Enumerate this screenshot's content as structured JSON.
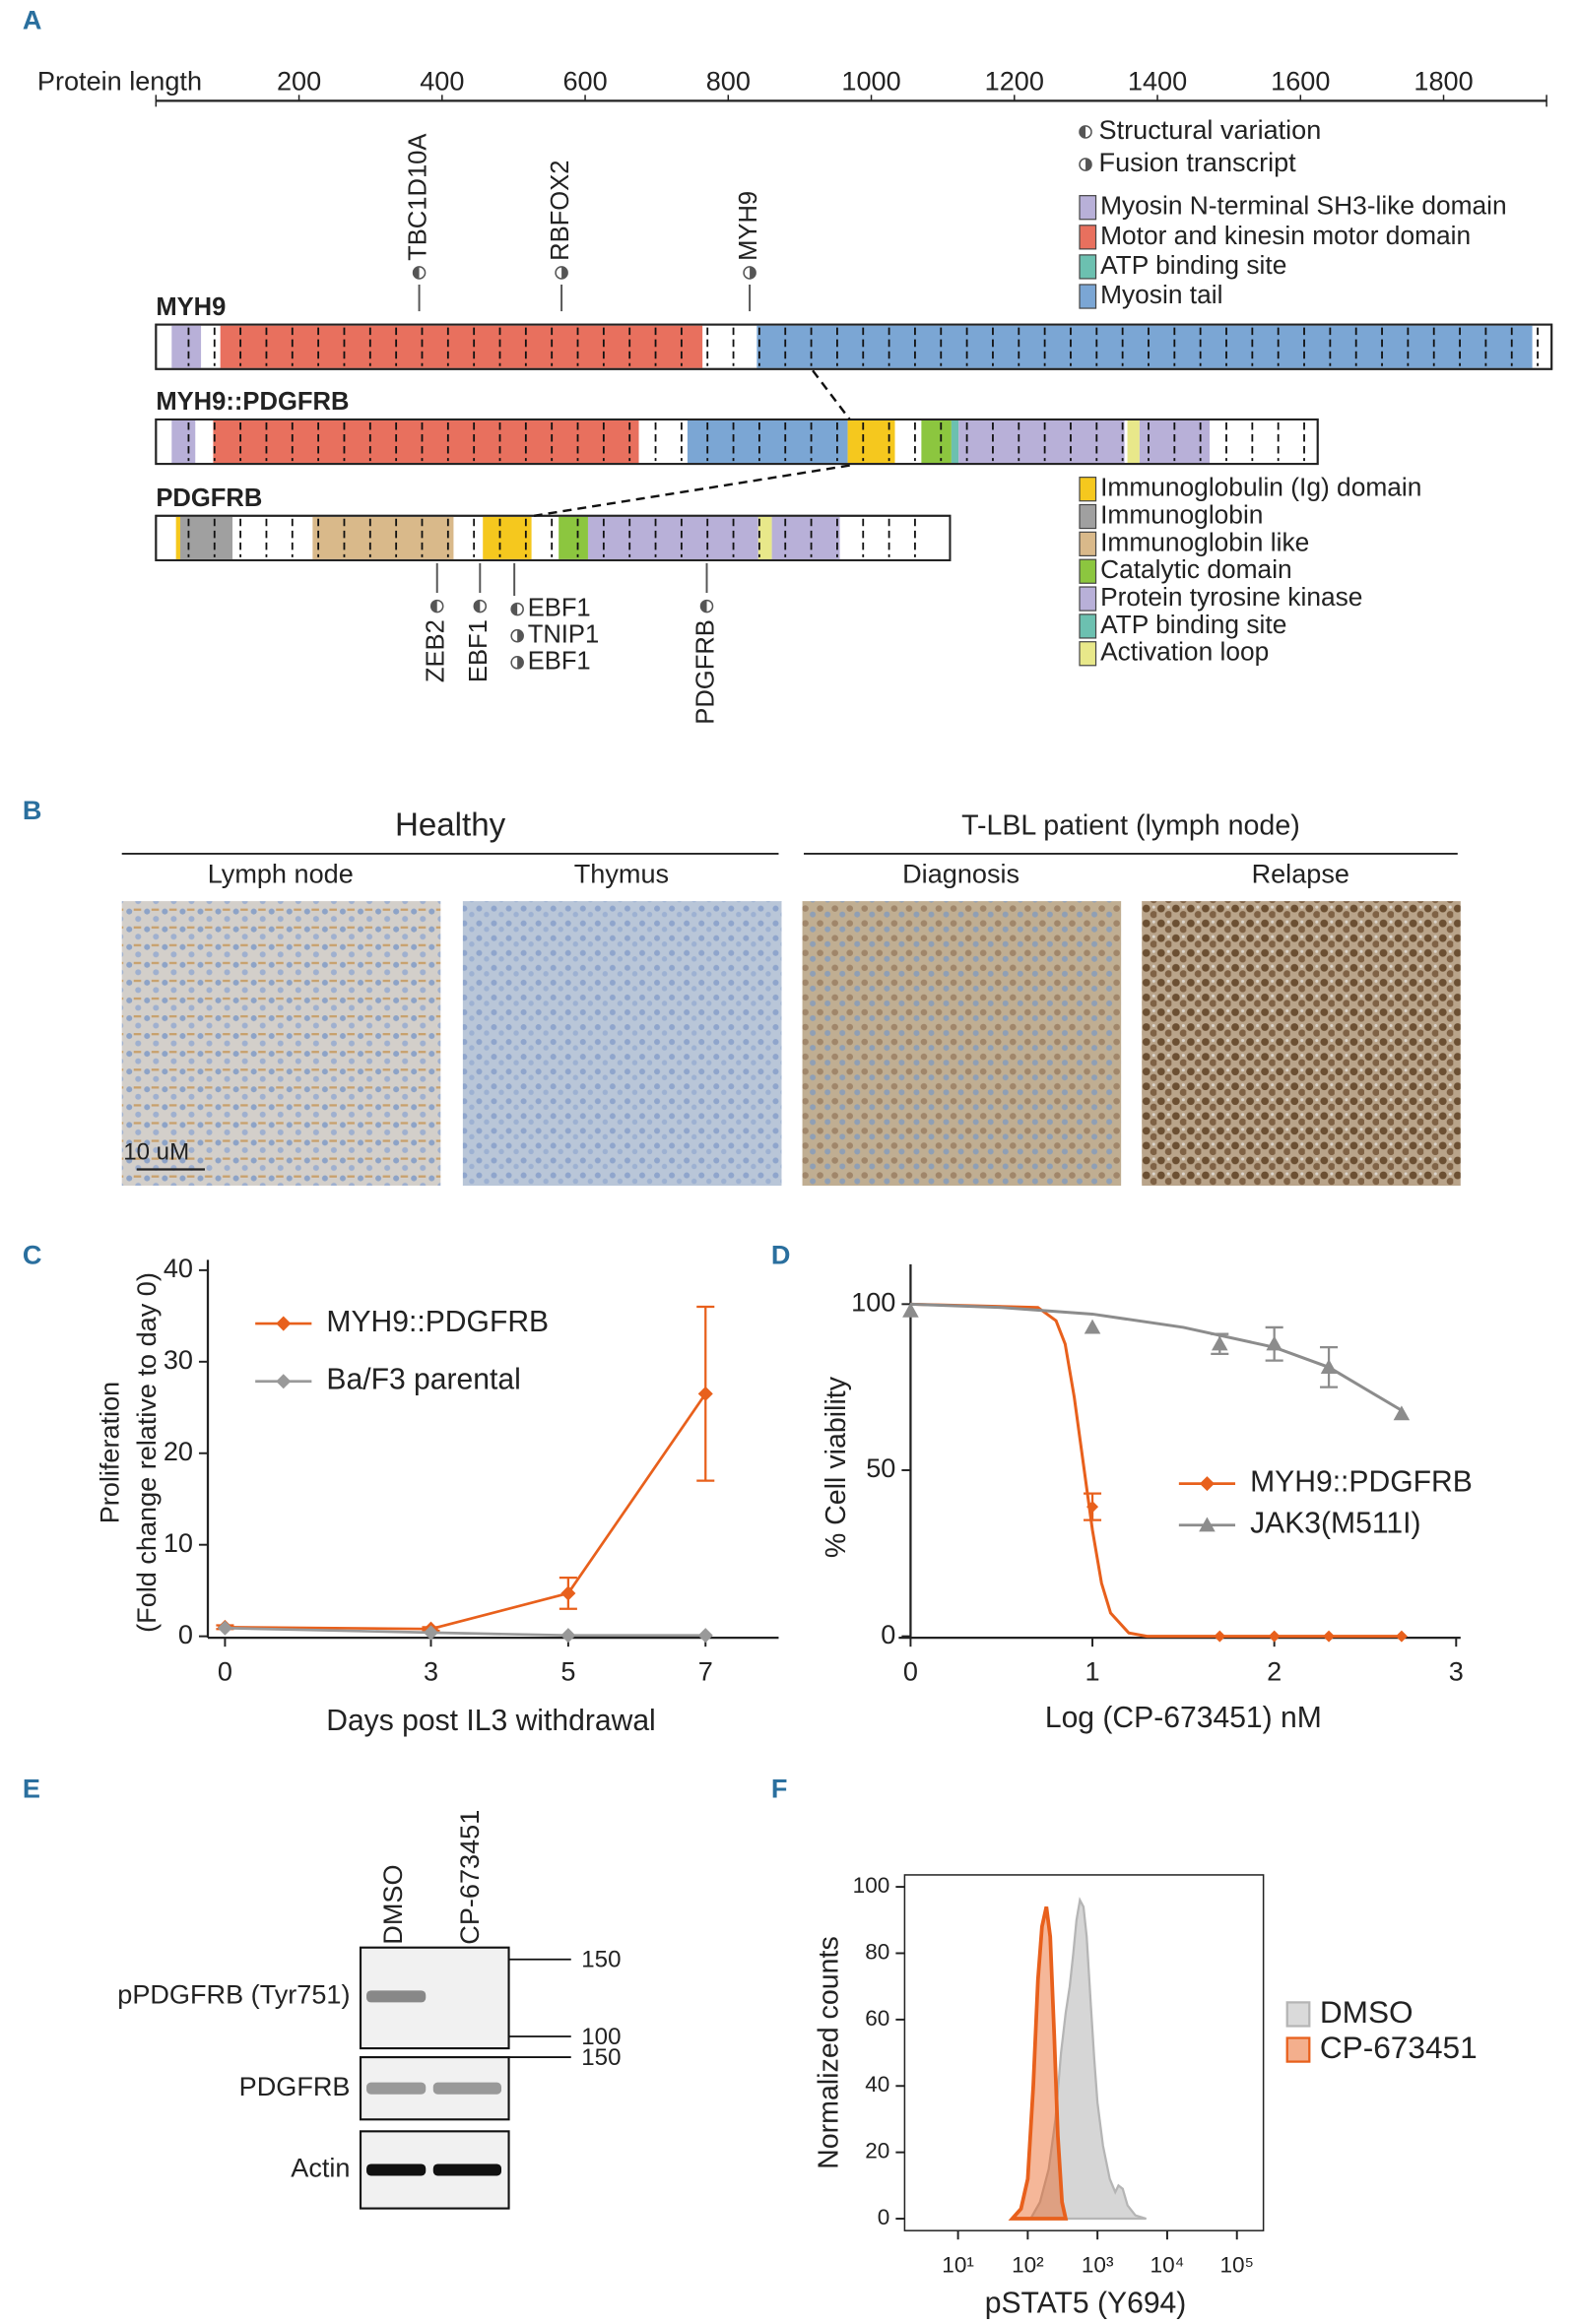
{
  "panel_labels": [
    "A",
    "B",
    "C",
    "D",
    "E",
    "F"
  ],
  "panel_a": {
    "axis": {
      "label": "Protein length",
      "lim": [
        0,
        1944
      ],
      "ticks": [
        200,
        400,
        600,
        800,
        1000,
        1200,
        1400,
        1600,
        1800
      ]
    },
    "variation_legend": [
      "Structural variation",
      "Fusion transcript"
    ],
    "legend_top": [
      {
        "label": "Myosin N-terminal SH3-like domain",
        "color": "#b8b0d8"
      },
      {
        "label": "Motor and  kinesin motor domain",
        "color": "#e8705e"
      },
      {
        "label": "ATP binding site",
        "color": "#6cc0b0"
      },
      {
        "label": "Myosin tail",
        "color": "#7ba6d4"
      }
    ],
    "legend_bottom": [
      {
        "label": "Immunoglobulin (Ig) domain",
        "color": "#f5c81e"
      },
      {
        "label": "Immunoglobin",
        "color": "#a0a0a0"
      },
      {
        "label": "Immunoglobin like",
        "color": "#d9b98a"
      },
      {
        "label": "Catalytic domain",
        "color": "#8cc63f"
      },
      {
        "label": "Protein tyrosine kinase",
        "color": "#b8b0d8"
      },
      {
        "label": "ATP binding site",
        "color": "#6cc0b0"
      },
      {
        "label": "Activation loop",
        "color": "#e8e88a"
      }
    ],
    "proteins": [
      {
        "name": "MYH9",
        "length": 1951,
        "segments": [
          {
            "start": 22,
            "end": 63,
            "color": "#b8b0d8"
          },
          {
            "start": 90,
            "end": 764,
            "color": "#e8705e"
          },
          {
            "start": 840,
            "end": 1924,
            "color": "#7ba6d4"
          }
        ]
      },
      {
        "name": "MYH9::PDGFRB",
        "length": 1624,
        "segments": [
          {
            "start": 22,
            "end": 55,
            "color": "#b8b0d8"
          },
          {
            "start": 80,
            "end": 675,
            "color": "#e8705e"
          },
          {
            "start": 743,
            "end": 967,
            "color": "#7ba6d4"
          },
          {
            "start": 967,
            "end": 1033,
            "color": "#f5c81e"
          },
          {
            "start": 1070,
            "end": 1112,
            "color": "#8cc63f"
          },
          {
            "start": 1112,
            "end": 1122,
            "color": "#6cc0b0"
          },
          {
            "start": 1122,
            "end": 1354,
            "color": "#b8b0d8"
          },
          {
            "start": 1358,
            "end": 1375,
            "color": "#e8e88a"
          },
          {
            "start": 1375,
            "end": 1473,
            "color": "#b8b0d8"
          }
        ]
      },
      {
        "name": "PDGFRB",
        "length": 1110,
        "segments": [
          {
            "start": 28,
            "end": 34,
            "color": "#f5c81e"
          },
          {
            "start": 34,
            "end": 107,
            "color": "#a0a0a0"
          },
          {
            "start": 219,
            "end": 416,
            "color": "#d9b98a"
          },
          {
            "start": 457,
            "end": 525,
            "color": "#f5c81e"
          },
          {
            "start": 563,
            "end": 604,
            "color": "#8cc63f"
          },
          {
            "start": 604,
            "end": 842,
            "color": "#b8b0d8"
          },
          {
            "start": 842,
            "end": 861,
            "color": "#e8e88a"
          },
          {
            "start": 861,
            "end": 956,
            "color": "#b8b0d8"
          }
        ]
      }
    ],
    "annotations_top": [
      {
        "label": "TBC1D10A",
        "pos": 368
      },
      {
        "label": "RBFOX2",
        "pos": 567
      },
      {
        "label": "MYH9",
        "pos": 830
      }
    ],
    "annotations_bottom": [
      {
        "label": "ZEB2",
        "pos": 393
      },
      {
        "label": "EBF1",
        "pos": 453
      },
      {
        "labels": [
          "EBF1",
          "TNIP1",
          "EBF1"
        ],
        "pos": 501
      },
      {
        "label": "PDGFRB",
        "pos": 770
      }
    ]
  },
  "panel_b": {
    "groups": [
      {
        "title": "Healthy",
        "panels": [
          "Lymph node",
          "Thymus"
        ]
      },
      {
        "title": "T-LBL patient (lymph node)",
        "panels": [
          "Diagnosis",
          "Relapse"
        ]
      }
    ],
    "scale_bar": "10 uM"
  },
  "panel_e": {
    "columns": [
      "DMSO",
      "CP-673451"
    ],
    "rows": [
      {
        "label": "pPDGFRB (Tyr751)",
        "markers": [
          150,
          100
        ]
      },
      {
        "label": "PDGFRB",
        "markers": [
          150
        ]
      },
      {
        "label": "Actin",
        "markers": []
      }
    ]
  },
  "chart_data": [
    {
      "type": "line",
      "xlabel": "Days post IL3 withdrawal",
      "ylabel": [
        "Proliferation",
        "(Fold change relative to day 0)"
      ],
      "x": [
        0,
        3,
        5,
        7
      ],
      "series": [
        {
          "name": "MYH9::PDGFRB",
          "color": "#e8601c",
          "values": [
            1,
            0.8,
            4.7,
            26.5
          ],
          "errors": [
            0.2,
            0.2,
            1.7,
            9.5
          ]
        },
        {
          "name": "Ba/F3 parental",
          "color": "#999999",
          "values": [
            0.9,
            0.4,
            0.1,
            0.1
          ]
        }
      ],
      "xlim": [
        -0.25,
        8
      ],
      "ylim": [
        0,
        40
      ],
      "xticks": [
        0,
        3,
        5,
        7
      ],
      "yticks": [
        0,
        10,
        20,
        30,
        40
      ]
    },
    {
      "type": "scatter",
      "xlabel": "Log (CP-673451) nM",
      "ylabel": [
        "% Cell viability"
      ],
      "series": [
        {
          "name": "MYH9::PDGFRB",
          "color": "#e8601c",
          "marker": "diamond",
          "x": [
            1,
            1.7,
            2,
            2.3,
            2.7
          ],
          "values": [
            39,
            0,
            0,
            0,
            0
          ],
          "errors": [
            4,
            0,
            0,
            0,
            0
          ],
          "fit_x": [
            0,
            0.7,
            0.8,
            0.85,
            0.9,
            0.95,
            1.0,
            1.05,
            1.1,
            1.2,
            1.3,
            2.7
          ],
          "fit_values": [
            100,
            99,
            95,
            88,
            72,
            52,
            32,
            16,
            7,
            1,
            0,
            0
          ]
        },
        {
          "name": "JAK3(M511I)",
          "color": "#8c8c8c",
          "marker": "triangle",
          "x": [
            0,
            1,
            1.7,
            2,
            2.3,
            2.7
          ],
          "values": [
            98,
            93,
            88,
            88,
            81,
            67
          ],
          "errors": [
            0,
            0,
            3,
            5,
            6,
            0
          ],
          "fit_x": [
            0,
            0.5,
            1,
            1.5,
            2,
            2.3,
            2.7
          ],
          "fit_values": [
            100,
            99,
            97,
            93,
            87,
            81,
            68
          ]
        }
      ],
      "xlim": [
        0,
        3
      ],
      "ylim": [
        0,
        112
      ],
      "xticks": [
        0,
        1,
        2,
        3
      ],
      "yticks": [
        0,
        50,
        100
      ]
    },
    {
      "type": "area",
      "xlabel": "pSTAT5 (Y694)",
      "ylabel": [
        "Normalized  counts"
      ],
      "xscale": "log",
      "series": [
        {
          "name": "DMSO",
          "color": "#b5b5b5",
          "x": [
            110,
            150,
            200,
            250,
            300,
            350,
            400,
            450,
            500,
            560,
            630,
            700,
            800,
            900,
            1000,
            1200,
            1500,
            1800,
            2000,
            2300,
            2700,
            3500,
            5000
          ],
          "values": [
            0,
            5,
            15,
            30,
            50,
            62,
            70,
            80,
            90,
            96,
            94,
            85,
            65,
            48,
            35,
            22,
            12,
            8,
            10,
            9,
            4,
            1,
            0
          ]
        },
        {
          "name": "CP-673451",
          "color": "#e8601c",
          "x": [
            60,
            80,
            100,
            120,
            140,
            160,
            185,
            210,
            240,
            270,
            310,
            350
          ],
          "values": [
            0,
            3,
            12,
            40,
            72,
            88,
            94,
            85,
            55,
            25,
            5,
            0
          ]
        }
      ],
      "xlim": [
        1.714,
        240000
      ],
      "ylim": [
        -3.6,
        103.6
      ],
      "xticks": [
        {
          "value": 10,
          "label": "10¹"
        },
        {
          "value": 100,
          "label": "10²"
        },
        {
          "value": 1000,
          "label": "10³"
        },
        {
          "value": 10000,
          "label": "10⁴"
        },
        {
          "value": 100000,
          "label": "10⁵"
        }
      ],
      "yticks": [
        0,
        20,
        40,
        60,
        80,
        100
      ]
    }
  ]
}
